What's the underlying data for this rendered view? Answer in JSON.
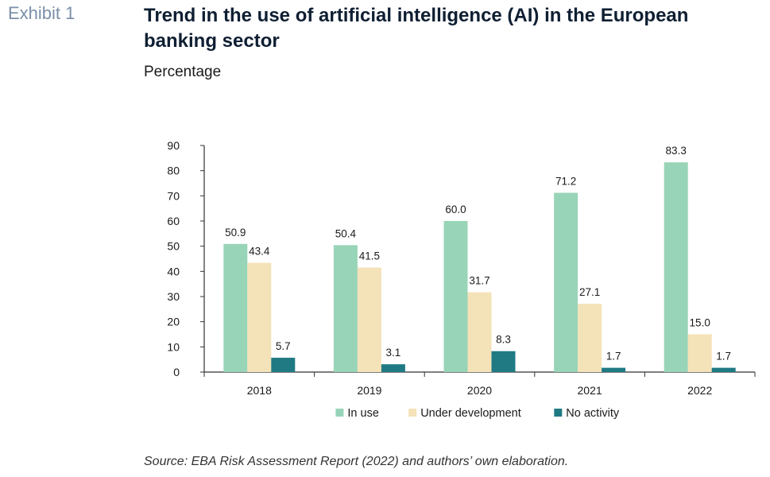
{
  "header": {
    "exhibit": "Exhibit 1",
    "title": "Trend in the use of artificial intelligence (AI) in the European banking sector",
    "subtitle": "Percentage"
  },
  "source": "Source: EBA Risk Assessment Report (2022) and authors’ own elaboration.",
  "chart_data": {
    "type": "bar",
    "title": "Trend in the use of artificial intelligence (AI) in the European banking sector",
    "subtitle": "Percentage",
    "categories": [
      "2018",
      "2019",
      "2020",
      "2021",
      "2022"
    ],
    "series": [
      {
        "name": "In use",
        "values": [
          50.9,
          50.4,
          60.0,
          71.2,
          83.3
        ],
        "labels": [
          "50.9",
          "50.4",
          "60.0",
          "71.2",
          "83.3"
        ],
        "color": "#98d4b8"
      },
      {
        "name": "Under development",
        "values": [
          43.4,
          41.5,
          31.7,
          27.1,
          15.0
        ],
        "labels": [
          "43.4",
          "41.5",
          "31.7",
          "27.1",
          "15.0"
        ],
        "color": "#f4e2b8"
      },
      {
        "name": "No activity",
        "values": [
          5.7,
          3.1,
          8.3,
          1.7,
          1.7
        ],
        "labels": [
          "5.7",
          "3.1",
          "8.3",
          "1.7",
          "1.7"
        ],
        "color": "#1f7a84"
      }
    ],
    "ylim": [
      0,
      90
    ],
    "yticks": [
      0,
      10,
      20,
      30,
      40,
      50,
      60,
      70,
      80,
      90
    ],
    "legend_position": "bottom",
    "grid": false,
    "xlabel": "",
    "ylabel": ""
  }
}
